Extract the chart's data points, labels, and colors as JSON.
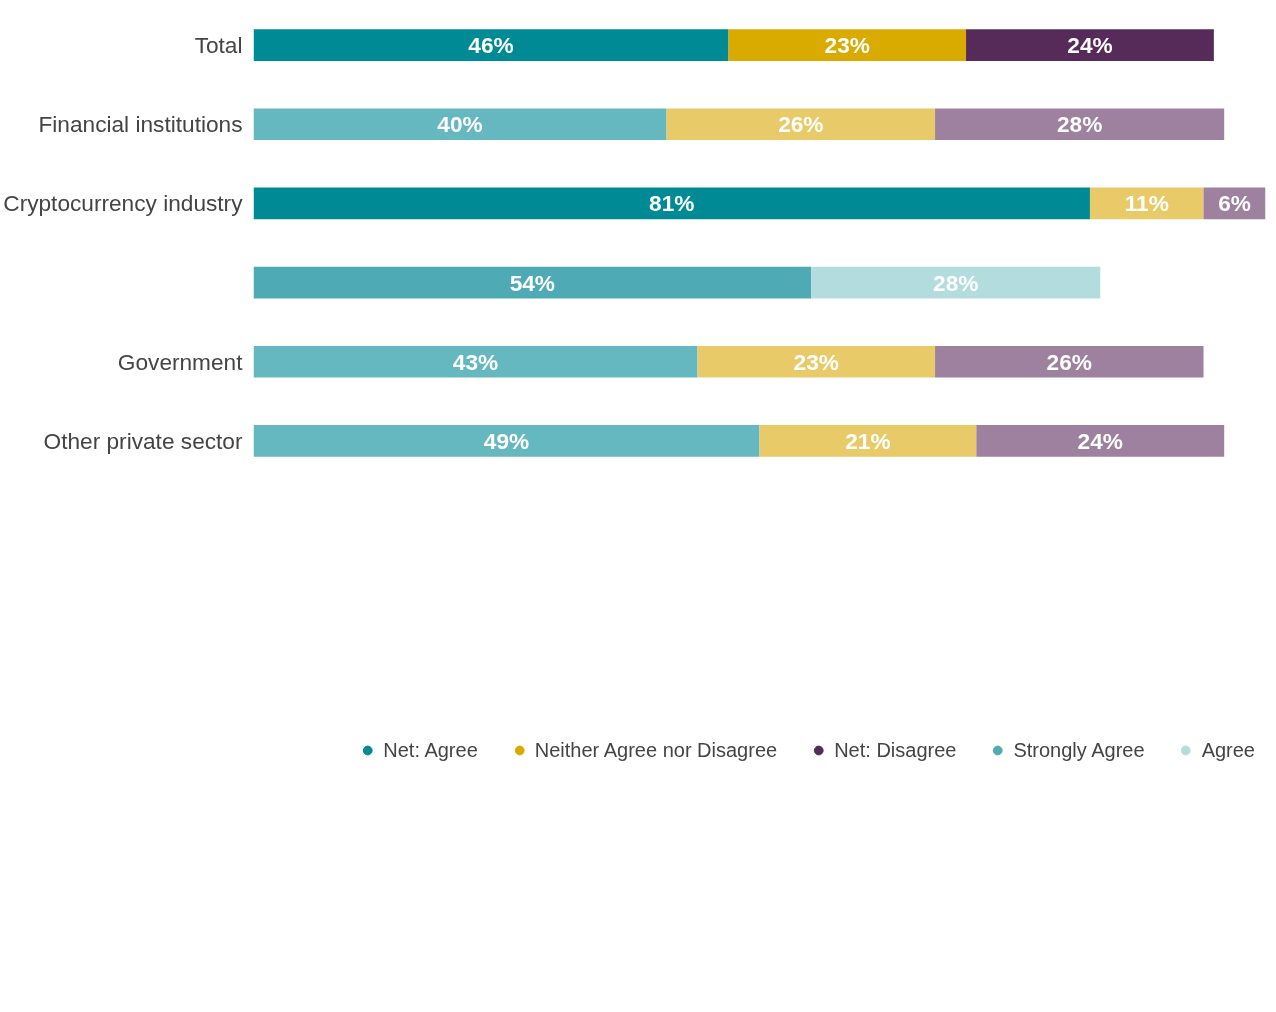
{
  "chart_data": {
    "type": "bar",
    "orientation": "horizontal",
    "stacked": true,
    "legend": "bottom",
    "grid": false,
    "categories": [
      "Total",
      "Financial institutions",
      "Cryptocurrency industry",
      null,
      "Government",
      "Other private sector"
    ],
    "series": [
      {
        "name": "Net: Agree",
        "color": "#008a96",
        "colors": [
          "#008a96",
          "#66b8c0",
          "#008a96",
          null,
          "#66b8c0",
          "#66b8c0"
        ],
        "values": [
          46,
          40,
          81,
          null,
          43,
          49
        ],
        "value_labels": [
          "46%",
          "40%",
          "81%",
          null,
          "43%",
          "49%"
        ]
      },
      {
        "name": "Neither Agree nor Disagree",
        "color": "#d9aa00",
        "colors": [
          "#d9aa00",
          "#e8cb68",
          "#e8cb68",
          null,
          "#e8cb68",
          "#e8cb68"
        ],
        "values": [
          23,
          26,
          11,
          null,
          23,
          21
        ],
        "value_labels": [
          "23%",
          "26%",
          "11%",
          null,
          "23%",
          "21%"
        ]
      },
      {
        "name": "Net: Disagree",
        "color": "#562b5a",
        "colors": [
          "#562b5a",
          "#9d819e",
          "#9d819e",
          null,
          "#9d819e",
          "#9d819e"
        ],
        "values": [
          24,
          28,
          6,
          null,
          26,
          24
        ],
        "value_labels": [
          "24%",
          "28%",
          "6%",
          null,
          "26%",
          "24%"
        ]
      },
      {
        "name": "Strongly Agree",
        "color": "#4eabb5",
        "values": [
          null,
          null,
          null,
          54,
          null,
          null
        ],
        "value_labels": [
          null,
          null,
          null,
          "54%",
          null,
          null
        ]
      },
      {
        "name": "Agree",
        "color": "#b2dcde",
        "values": [
          null,
          null,
          null,
          28,
          null,
          null
        ],
        "value_labels": [
          null,
          null,
          null,
          "28%",
          null,
          null
        ]
      }
    ]
  }
}
